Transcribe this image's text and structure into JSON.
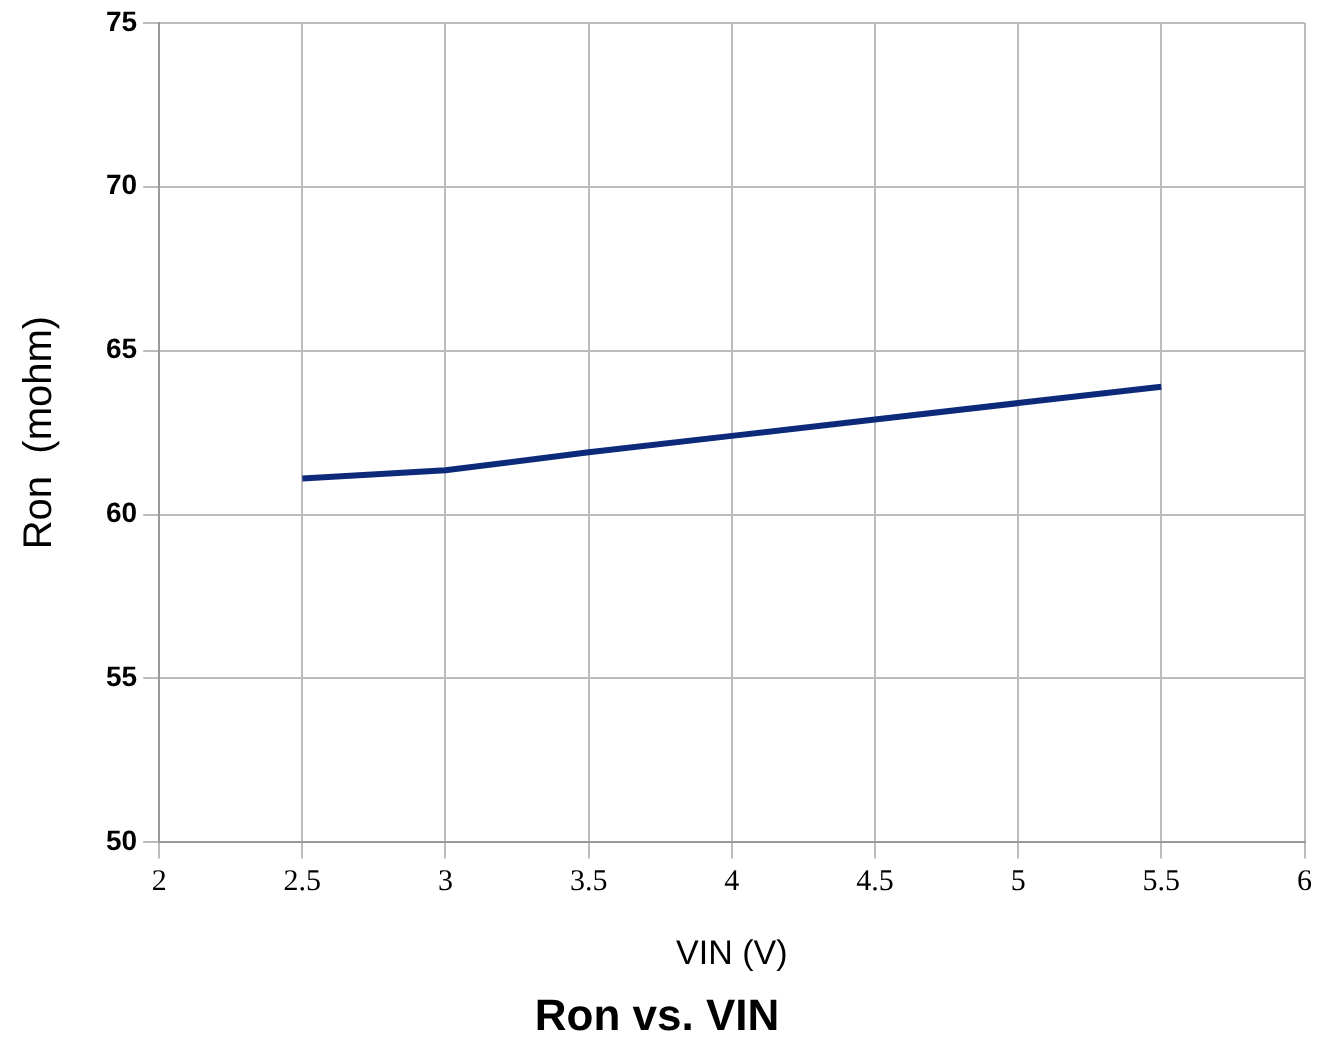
{
  "chart_data": {
    "type": "line",
    "title": "Ron vs. VIN",
    "xlabel": "VIN (V)",
    "ylabel": "Ron  (mohm)",
    "x": [
      2.5,
      3,
      3.5,
      4,
      4.5,
      5,
      5.5
    ],
    "series": [
      {
        "color": "#0d2a7a",
        "values": [
          61.1,
          61.35,
          61.9,
          62.4,
          62.9,
          63.4,
          63.9
        ]
      }
    ],
    "xlim": [
      2,
      6
    ],
    "xticks": [
      2,
      2.5,
      3,
      3.5,
      4,
      4.5,
      5,
      5.5,
      6
    ],
    "ylim": [
      50,
      75
    ],
    "yticks": [
      50,
      55,
      60,
      65,
      70,
      75
    ],
    "grid": true,
    "legend": false,
    "marker": "none",
    "line_style": "solid"
  }
}
